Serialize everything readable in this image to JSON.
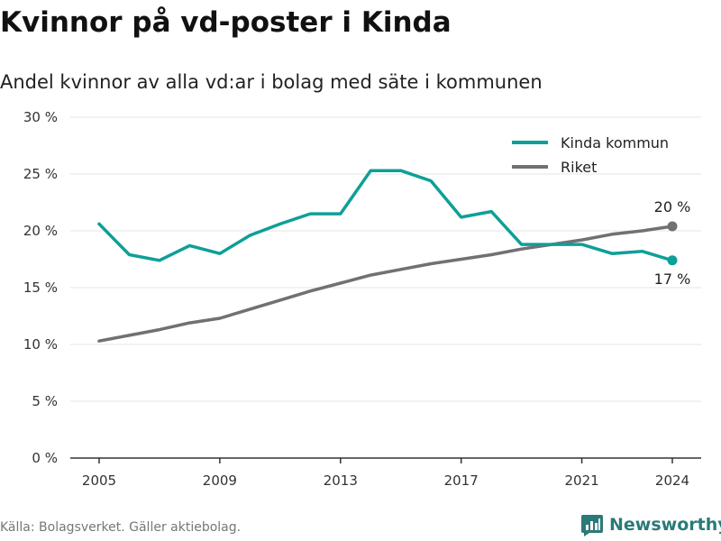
{
  "header": {
    "title": "Kvinnor på vd-poster i Kinda",
    "subtitle": "Andel kvinnor av alla vd:ar i bolag med säte i kommunen"
  },
  "footer": {
    "source": "Källa: Bolagsverket. Gäller aktiebolag.",
    "brand": "Newsworthy",
    "brand_icon": "newsworthy-logo-icon"
  },
  "colors": {
    "kinda": "#0e9f98",
    "riket": "#707075",
    "grid": "#e6e6e6",
    "axis": "#333333",
    "brand": "#2a7a78"
  },
  "chart_data": {
    "type": "line",
    "title": "Kvinnor på vd-poster i Kinda",
    "subtitle": "Andel kvinnor av alla vd:ar i bolag med säte i kommunen",
    "xlabel": "",
    "ylabel": "",
    "x": [
      2005,
      2006,
      2007,
      2008,
      2009,
      2010,
      2011,
      2012,
      2013,
      2014,
      2015,
      2016,
      2017,
      2018,
      2019,
      2020,
      2021,
      2022,
      2023,
      2024
    ],
    "x_ticks": [
      "2005",
      "2009",
      "2013",
      "2017",
      "2021",
      "2024"
    ],
    "y_ticks": [
      "0 %",
      "5 %",
      "10 %",
      "15 %",
      "20 %",
      "25 %",
      "30 %"
    ],
    "ylim": [
      0,
      30
    ],
    "grid": "horizontal",
    "legend_position": "top-right",
    "series": [
      {
        "name": "Kinda kommun",
        "color": "#0e9f98",
        "values": [
          20.6,
          17.9,
          17.4,
          18.7,
          18.0,
          19.6,
          20.6,
          21.5,
          21.5,
          25.3,
          25.3,
          24.4,
          21.2,
          21.7,
          18.8,
          18.8,
          18.8,
          18.0,
          18.2,
          17.4
        ],
        "end_label": "17 %"
      },
      {
        "name": "Riket",
        "color": "#707075",
        "values": [
          10.3,
          10.8,
          11.3,
          11.9,
          12.3,
          13.1,
          13.9,
          14.7,
          15.4,
          16.1,
          16.6,
          17.1,
          17.5,
          17.9,
          18.4,
          18.8,
          19.2,
          19.7,
          20.0,
          20.4
        ],
        "end_label": "20 %"
      }
    ]
  }
}
